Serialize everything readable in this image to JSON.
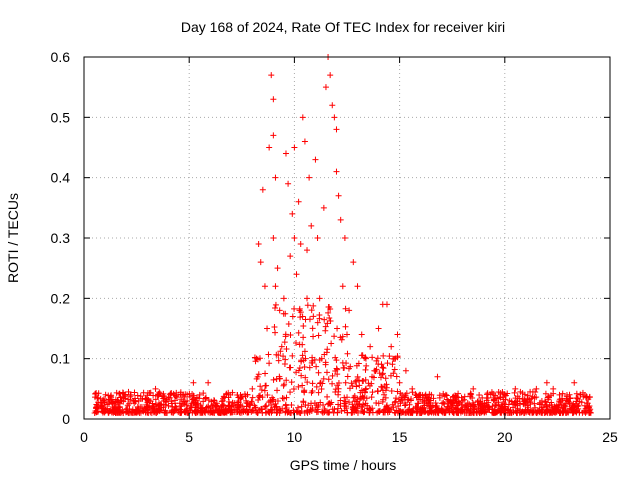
{
  "chart_data": {
    "type": "scatter",
    "title": "Day 168 of 2024, Rate Of TEC Index for receiver kiri",
    "xlabel": "GPS time / hours",
    "ylabel": "ROTI / TECUs",
    "xlim": [
      0,
      25
    ],
    "ylim": [
      0,
      0.6
    ],
    "xticks": [
      0,
      5,
      10,
      15,
      20,
      25
    ],
    "yticks": [
      0,
      0.1,
      0.2,
      0.3,
      0.4,
      0.5,
      0.6
    ],
    "xtick_labels": [
      "0",
      "5",
      "10",
      "15",
      "20",
      "25"
    ],
    "ytick_labels": [
      "0",
      "0.1",
      "0.2",
      "0.3",
      "0.4",
      "0.5",
      "0.6"
    ],
    "grid": true,
    "marker": "+",
    "color": "#ff0000",
    "series": [
      {
        "name": "kiri",
        "x": [
          0.6,
          0.9,
          1.3,
          1.7,
          2.2,
          2.6,
          3.1,
          3.4,
          3.8,
          4.2,
          4.6,
          4.9,
          5.2,
          5.5,
          5.9,
          6.2,
          6.6,
          7.0,
          7.3,
          7.7,
          8.0,
          8.2,
          8.3,
          8.4,
          8.5,
          8.6,
          8.7,
          8.8,
          8.9,
          9.0,
          9.0,
          9.0,
          9.1,
          9.1,
          9.2,
          9.3,
          9.4,
          9.5,
          9.6,
          9.7,
          9.8,
          9.9,
          10.0,
          10.0,
          10.1,
          10.2,
          10.3,
          10.4,
          10.5,
          10.6,
          10.6,
          10.7,
          10.8,
          10.9,
          11.0,
          11.1,
          11.2,
          11.3,
          11.4,
          11.5,
          11.6,
          11.7,
          11.8,
          11.9,
          12.0,
          12.0,
          12.1,
          12.2,
          12.3,
          12.4,
          12.5,
          12.6,
          12.8,
          13.0,
          13.2,
          13.4,
          13.6,
          13.8,
          14.0,
          14.2,
          14.4,
          14.6,
          14.8,
          14.9,
          15.0,
          15.3,
          15.6,
          16.0,
          16.4,
          16.8,
          17.2,
          17.6,
          18.0,
          18.5,
          19.0,
          19.5,
          20.0,
          20.5,
          21.0,
          21.5,
          22.0,
          22.3,
          22.6,
          23.0,
          23.3,
          23.6,
          23.9
        ],
        "y": [
          0.02,
          0.02,
          0.03,
          0.02,
          0.04,
          0.03,
          0.03,
          0.05,
          0.03,
          0.02,
          0.04,
          0.03,
          0.06,
          0.04,
          0.06,
          0.03,
          0.03,
          0.02,
          0.02,
          0.03,
          0.05,
          0.1,
          0.29,
          0.26,
          0.38,
          0.22,
          0.15,
          0.45,
          0.57,
          0.53,
          0.47,
          0.3,
          0.4,
          0.22,
          0.25,
          0.18,
          0.12,
          0.2,
          0.44,
          0.39,
          0.27,
          0.34,
          0.45,
          0.3,
          0.24,
          0.36,
          0.29,
          0.5,
          0.46,
          0.28,
          0.2,
          0.4,
          0.32,
          0.17,
          0.43,
          0.3,
          0.2,
          0.1,
          0.35,
          0.55,
          0.6,
          0.57,
          0.52,
          0.5,
          0.48,
          0.41,
          0.37,
          0.33,
          0.22,
          0.3,
          0.14,
          0.18,
          0.26,
          0.22,
          0.14,
          0.1,
          0.12,
          0.08,
          0.15,
          0.19,
          0.19,
          0.12,
          0.1,
          0.14,
          0.06,
          0.08,
          0.05,
          0.04,
          0.03,
          0.07,
          0.04,
          0.03,
          0.03,
          0.05,
          0.02,
          0.03,
          0.04,
          0.05,
          0.03,
          0.05,
          0.06,
          0.05,
          0.04,
          0.03,
          0.06,
          0.04,
          0.02
        ]
      }
    ],
    "note": "Dense red '+' markers; most points near baseline 0.01–0.06; elevated activity 8–15 hours."
  }
}
